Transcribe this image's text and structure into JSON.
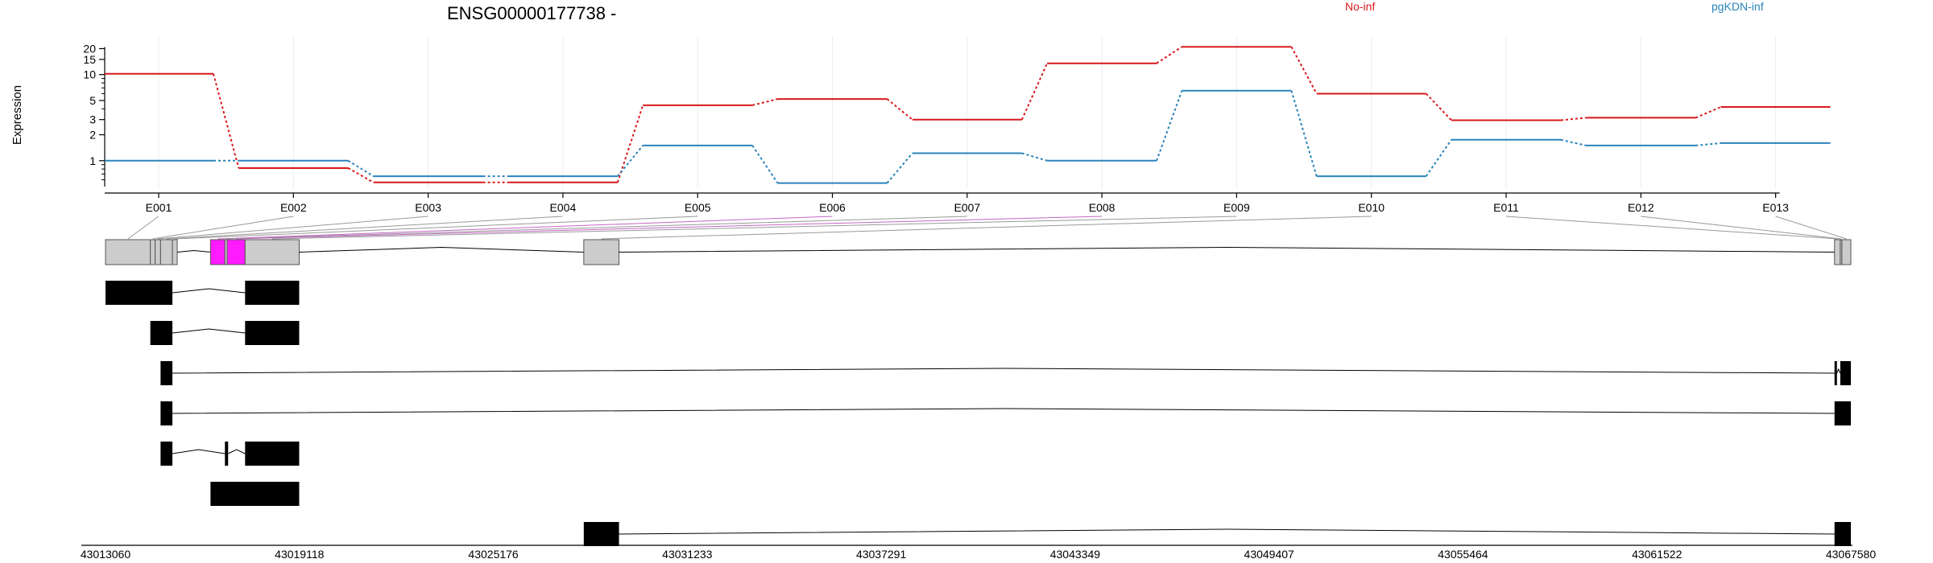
{
  "chart_data": {
    "type": "line",
    "title": "ENSG00000177738 -",
    "ylabel": "Expression",
    "y_scale": "log",
    "y_ticks": [
      "1",
      "2",
      "3",
      "5",
      "10",
      "15",
      "20"
    ],
    "ylim": [
      0.5,
      24
    ],
    "categories": [
      "E001",
      "E002",
      "E003",
      "E004",
      "E005",
      "E006",
      "E007",
      "E008",
      "E009",
      "E010",
      "E011",
      "E012",
      "E013"
    ],
    "series": [
      {
        "name": "No-inf",
        "color": "#d7191c",
        "values": [
          10.2,
          0.82,
          0.56,
          0.56,
          4.4,
          5.2,
          3.0,
          13.5,
          21.0,
          6.0,
          2.95,
          3.15,
          4.2
        ]
      },
      {
        "name": "pgKDN-inf",
        "color": "#2b83ba",
        "values": [
          1.0,
          1.0,
          0.66,
          0.66,
          1.5,
          0.55,
          1.22,
          1.0,
          6.5,
          0.66,
          1.75,
          1.5,
          1.6
        ]
      }
    ],
    "legend_position": "top",
    "grid": "vertical",
    "gene_model": {
      "genomic_ticks": [
        "43013060",
        "43019118",
        "43025176",
        "43031233",
        "43037291",
        "43043349",
        "43049407",
        "43055464",
        "43061522",
        "43067580"
      ],
      "genomic_range": [
        43013060,
        43067580
      ],
      "highlight_color": "#ff1aff",
      "exon_box_color": "#cccccc",
      "bins": [
        {
          "exon": "E001",
          "start": 43013060,
          "end": 43014460
        },
        {
          "exon": "E002",
          "start": 43014460,
          "end": 43014610
        },
        {
          "exon": "E003",
          "start": 43014610,
          "end": 43014780
        },
        {
          "exon": "E004",
          "start": 43014780,
          "end": 43015150
        },
        {
          "exon": "E005",
          "start": 43015150,
          "end": 43015300
        },
        {
          "exon": "E006",
          "start": 43016340,
          "end": 43016790
        },
        {
          "exon": "E007",
          "start": 43016790,
          "end": 43016860
        },
        {
          "exon": "E008",
          "start": 43016860,
          "end": 43017420
        },
        {
          "exon": "E009",
          "start": 43017420,
          "end": 43019110
        },
        {
          "exon": "E010",
          "start": 43028000,
          "end": 43029100
        },
        {
          "exon": "E011",
          "start": 43067070,
          "end": 43067250
        },
        {
          "exon": "E012",
          "start": 43067250,
          "end": 43067300
        },
        {
          "exon": "E013",
          "start": 43067300,
          "end": 43067580
        }
      ],
      "highlighted_exons": [
        "E006",
        "E008"
      ],
      "transcripts": [
        {
          "exons": [
            [
              43013060,
              43015150
            ],
            [
              43017420,
              43019110
            ]
          ]
        },
        {
          "exons": [
            [
              43014460,
              43015150
            ],
            [
              43017420,
              43019110
            ]
          ]
        },
        {
          "exons": [
            [
              43014780,
              43015150
            ],
            [
              43067070,
              43067140
            ],
            [
              43067250,
              43067580
            ]
          ]
        },
        {
          "exons": [
            [
              43014780,
              43015150
            ],
            [
              43067070,
              43067580
            ]
          ]
        },
        {
          "exons": [
            [
              43014780,
              43015150
            ],
            [
              43016790,
              43016890
            ],
            [
              43017420,
              43019110
            ]
          ]
        },
        {
          "exons": [
            [
              43016340,
              43019110
            ]
          ]
        },
        {
          "exons": [
            [
              43028000,
              43029100
            ],
            [
              43067070,
              43067580
            ]
          ]
        }
      ]
    }
  }
}
